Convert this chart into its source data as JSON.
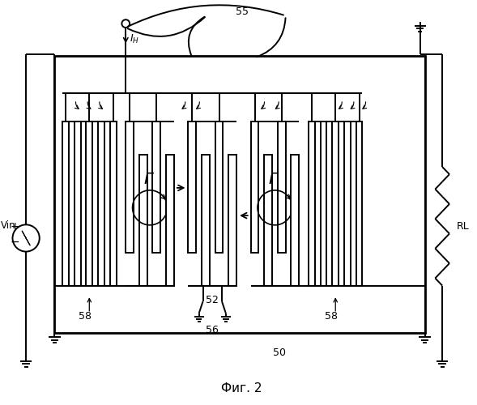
{
  "title": "Фиг. 2",
  "background": "#ffffff",
  "fig_width": 5.89,
  "fig_height": 5.0,
  "labels": {
    "55": "55",
    "52": "52",
    "56": "56",
    "58": "58",
    "50": "50",
    "Gamma": "Γ",
    "Vin": "Vin",
    "RL": "RL",
    "IH": "I_H"
  }
}
